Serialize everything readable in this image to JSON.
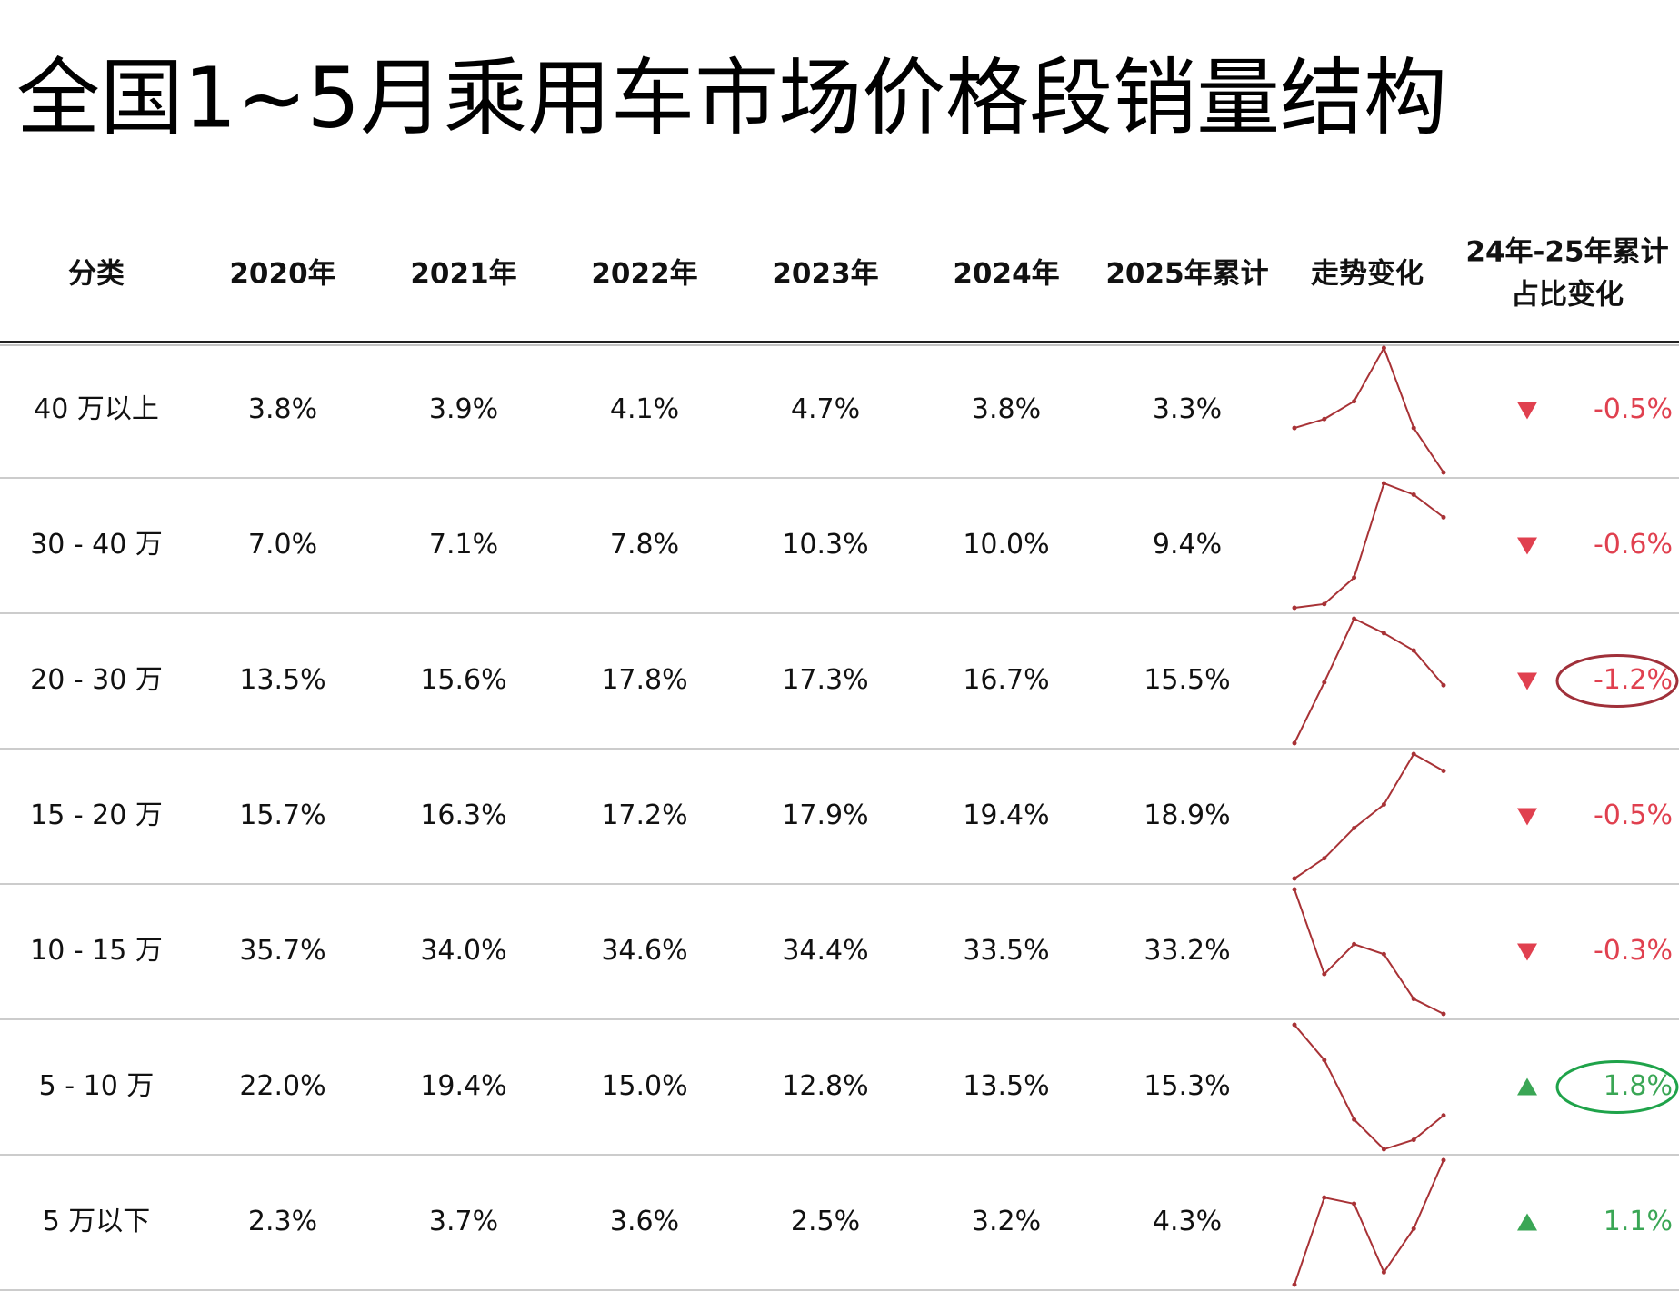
{
  "title": "全国1~5月乘用车市场价格段销量结构",
  "table": {
    "headers": [
      "分类",
      "2020年",
      "2021年",
      "2022年",
      "2023年",
      "2024年",
      "2025年累计",
      "走势变化",
      [
        "24年-25年累计",
        "占比变化"
      ]
    ],
    "line_color": "#a83236",
    "up_color": "#3aa655",
    "down_color": "#e0404f",
    "rows": [
      {
        "label": "40 万以上",
        "values": [
          3.8,
          3.9,
          4.1,
          4.7,
          3.8,
          3.3
        ],
        "value_labels": [
          "3.8%",
          "3.9%",
          "4.1%",
          "4.7%",
          "3.8%",
          "3.3%"
        ],
        "change": -0.5,
        "change_label": "-0.5%",
        "direction": "down",
        "highlight": false
      },
      {
        "label": "30 - 40 万",
        "values": [
          7.0,
          7.1,
          7.8,
          10.3,
          10.0,
          9.4
        ],
        "value_labels": [
          "7.0%",
          "7.1%",
          "7.8%",
          "10.3%",
          "10.0%",
          "9.4%"
        ],
        "change": -0.6,
        "change_label": "-0.6%",
        "direction": "down",
        "highlight": false
      },
      {
        "label": "20 - 30 万",
        "values": [
          13.5,
          15.6,
          17.8,
          17.3,
          16.7,
          15.5
        ],
        "value_labels": [
          "13.5%",
          "15.6%",
          "17.8%",
          "17.3%",
          "16.7%",
          "15.5%"
        ],
        "change": -1.2,
        "change_label": "-1.2%",
        "direction": "down",
        "highlight": true
      },
      {
        "label": "15 - 20 万",
        "values": [
          15.7,
          16.3,
          17.2,
          17.9,
          19.4,
          18.9
        ],
        "value_labels": [
          "15.7%",
          "16.3%",
          "17.2%",
          "17.9%",
          "19.4%",
          "18.9%"
        ],
        "change": -0.5,
        "change_label": "-0.5%",
        "direction": "down",
        "highlight": false
      },
      {
        "label": "10 - 15 万",
        "values": [
          35.7,
          34.0,
          34.6,
          34.4,
          33.5,
          33.2
        ],
        "value_labels": [
          "35.7%",
          "34.0%",
          "34.6%",
          "34.4%",
          "33.5%",
          "33.2%"
        ],
        "change": -0.3,
        "change_label": "-0.3%",
        "direction": "down",
        "highlight": false
      },
      {
        "label": "5 - 10 万",
        "values": [
          22.0,
          19.4,
          15.0,
          12.8,
          13.5,
          15.3
        ],
        "value_labels": [
          "22.0%",
          "19.4%",
          "15.0%",
          "12.8%",
          "13.5%",
          "15.3%"
        ],
        "change": 1.8,
        "change_label": "1.8%",
        "direction": "up",
        "highlight": true
      },
      {
        "label": "5 万以下",
        "values": [
          2.3,
          3.7,
          3.6,
          2.5,
          3.2,
          4.3
        ],
        "value_labels": [
          "2.3%",
          "3.7%",
          "3.6%",
          "2.5%",
          "3.2%",
          "4.3%"
        ],
        "change": 1.1,
        "change_label": "1.1%",
        "direction": "up",
        "highlight": false
      }
    ]
  }
}
